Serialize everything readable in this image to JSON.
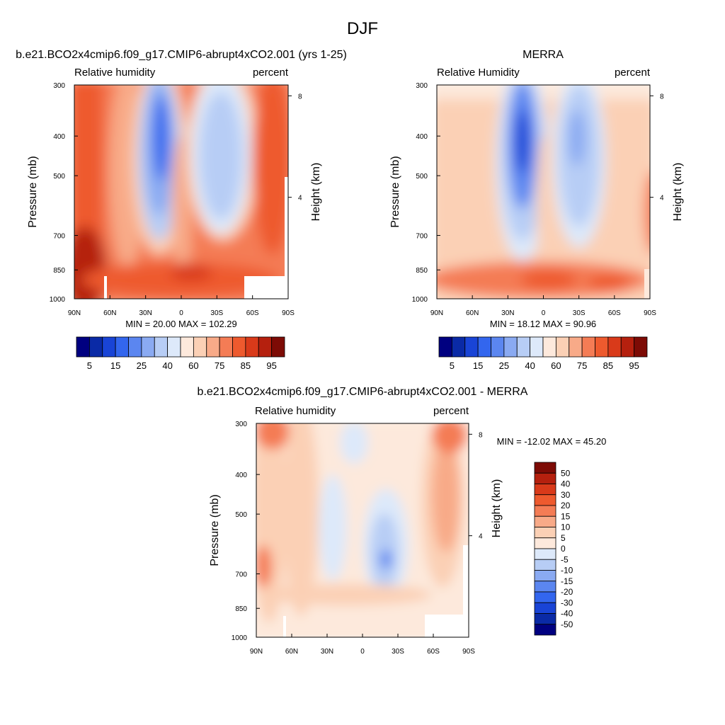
{
  "page": {
    "title": "DJF"
  },
  "colors": {
    "rh_scale": [
      "#000080",
      "#0a2aa6",
      "#1944d6",
      "#3366ee",
      "#5b86f0",
      "#8aaaf2",
      "#b7cdf5",
      "#dde9fa",
      "#fde9dc",
      "#fbd0b5",
      "#f8aa88",
      "#f47c55",
      "#ee5a2e",
      "#d93a1a",
      "#b5200e",
      "#7d0b05"
    ],
    "diff_scale": [
      "#000080",
      "#0a2aa6",
      "#1944d6",
      "#3366ee",
      "#5b86f0",
      "#8aaaf2",
      "#b7cdf5",
      "#dde9fa",
      "#fde9dc",
      "#fbd0b5",
      "#f8aa88",
      "#f47c55",
      "#ee5a2e",
      "#d93a1a",
      "#b5200e",
      "#7d0b05"
    ],
    "missing": "#ffffff"
  },
  "chart_data": [
    {
      "type": "heatmap",
      "id": "model",
      "title": "b.e21.BCO2x4cmip6.f09_g17.CMIP6-abrupt4xCO2.001 (yrs 1-25)",
      "left_label": "Relative humidity",
      "right_label": "percent",
      "ylabel": "Pressure (mb)",
      "ylabel_right": "Height (km)",
      "x_ticks": [
        "90N",
        "60N",
        "30N",
        "0",
        "30S",
        "60S",
        "90S"
      ],
      "x_values": [
        90,
        60,
        30,
        0,
        -30,
        -60,
        -90
      ],
      "y_ticks": [
        "300",
        "400",
        "500",
        "700",
        "850",
        "1000"
      ],
      "y_values": [
        300,
        400,
        500,
        700,
        850,
        1000
      ],
      "y_ticks_right": [
        "8",
        "4"
      ],
      "y_values_right_km": [
        8,
        4
      ],
      "ylim": [
        300,
        1000
      ],
      "stats_text": "MIN =  20.00  MAX = 102.29",
      "min": 20.0,
      "max": 102.29,
      "colorbar_levels": [
        5,
        10,
        15,
        20,
        25,
        30,
        40,
        50,
        60,
        70,
        75,
        80,
        85,
        90,
        95
      ],
      "colorbar_labels": [
        "5",
        "15",
        "25",
        "40",
        "60",
        "75",
        "85",
        "95"
      ]
    },
    {
      "type": "heatmap",
      "id": "obs",
      "title": "MERRA",
      "left_label": "Relative Humidity",
      "right_label": "percent",
      "ylabel": "Pressure (mb)",
      "ylabel_right": "Height (km)",
      "x_ticks": [
        "90N",
        "60N",
        "30N",
        "0",
        "30S",
        "60S",
        "90S"
      ],
      "x_values": [
        90,
        60,
        30,
        0,
        -30,
        -60,
        -90
      ],
      "y_ticks": [
        "300",
        "400",
        "500",
        "700",
        "850",
        "1000"
      ],
      "y_values": [
        300,
        400,
        500,
        700,
        850,
        1000
      ],
      "y_ticks_right": [
        "8",
        "4"
      ],
      "y_values_right_km": [
        8,
        4
      ],
      "ylim": [
        300,
        1000
      ],
      "stats_text": "MIN =  18.12  MAX =  90.96",
      "min": 18.12,
      "max": 90.96,
      "colorbar_levels": [
        5,
        10,
        15,
        20,
        25,
        30,
        40,
        50,
        60,
        70,
        75,
        80,
        85,
        90,
        95
      ],
      "colorbar_labels": [
        "5",
        "15",
        "25",
        "40",
        "60",
        "75",
        "85",
        "95"
      ]
    },
    {
      "type": "heatmap",
      "id": "diff",
      "title": "b.e21.BCO2x4cmip6.f09_g17.CMIP6-abrupt4xCO2.001 - MERRA",
      "left_label": "Relative humidity",
      "right_label": "percent",
      "ylabel": "Pressure (mb)",
      "ylabel_right": "Height (km)",
      "x_ticks": [
        "90N",
        "60N",
        "30N",
        "0",
        "30S",
        "60S",
        "90S"
      ],
      "x_values": [
        90,
        60,
        30,
        0,
        -30,
        -60,
        -90
      ],
      "y_ticks": [
        "300",
        "400",
        "500",
        "700",
        "850",
        "1000"
      ],
      "y_values": [
        300,
        400,
        500,
        700,
        850,
        1000
      ],
      "y_ticks_right": [
        "8",
        "4"
      ],
      "y_values_right_km": [
        8,
        4
      ],
      "ylim": [
        300,
        1000
      ],
      "stats_text": "MIN = -12.02  MAX =  45.20",
      "min": -12.02,
      "max": 45.2,
      "colorbar_levels": [
        -50,
        -40,
        -30,
        -20,
        -15,
        -10,
        -5,
        0,
        5,
        10,
        15,
        20,
        30,
        40,
        50
      ],
      "colorbar_labels": [
        "50",
        "40",
        "30",
        "20",
        "15",
        "10",
        "5",
        "0",
        "-5",
        "-10",
        "-15",
        "-20",
        "-30",
        "-40",
        "-50"
      ]
    }
  ]
}
